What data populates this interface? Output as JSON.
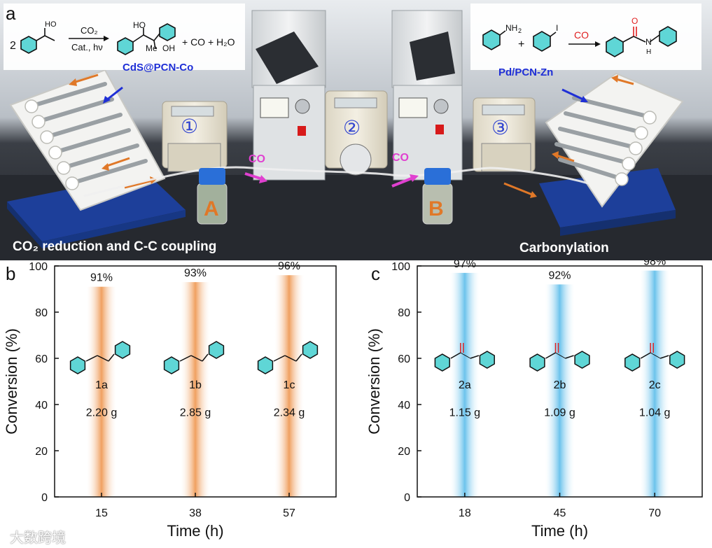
{
  "panel_a": {
    "letter": "a",
    "reaction1": {
      "coefficient": "2",
      "conditions_top": "CO₂",
      "conditions_bottom": "Cat., hν",
      "side_products": "+ CO + H₂O",
      "catalyst_label": "CdS@PCN-Co"
    },
    "reaction2": {
      "plus": "+",
      "reagent_label": "CO",
      "catalyst_label": "Pd/PCN-Zn"
    },
    "pump_numbers": [
      "①",
      "②",
      "③"
    ],
    "co_labels": [
      "CO",
      "CO"
    ],
    "vessel_labels": [
      "A",
      "B"
    ],
    "caption_left": "CO₂ reduction and C-C coupling",
    "caption_right": "Carbonylation",
    "colors": {
      "photo_bg": "#3c4048",
      "catalyst_text": "#1f2fd6",
      "co_red": "#e02020",
      "co_magenta": "#e040d0",
      "arrow_orange": "#e07828"
    }
  },
  "chart_data": [
    {
      "type": "bar",
      "panel_letter": "b",
      "categories": [
        "15",
        "38",
        "57"
      ],
      "values": [
        91,
        93,
        96
      ],
      "value_labels": [
        "91%",
        "93%",
        "96%"
      ],
      "compound_ids": [
        "1a",
        "1b",
        "1c"
      ],
      "masses": [
        "2.20 g",
        "2.85 g",
        "2.34 g"
      ],
      "xlabel": "Time (h)",
      "ylabel": "Conversion (%)",
      "ylim": [
        0,
        100
      ],
      "yticks": [
        "0",
        "20",
        "40",
        "60",
        "80",
        "100"
      ],
      "color": "#f5b07c",
      "grid": false
    },
    {
      "type": "bar",
      "panel_letter": "c",
      "categories": [
        "18",
        "45",
        "70"
      ],
      "values": [
        97,
        92,
        98
      ],
      "value_labels": [
        "97%",
        "92%",
        "98%"
      ],
      "compound_ids": [
        "2a",
        "2b",
        "2c"
      ],
      "masses": [
        "1.15 g",
        "1.09 g",
        "1.04 g"
      ],
      "xlabel": "Time (h)",
      "ylabel": "Conversion (%)",
      "ylim": [
        0,
        100
      ],
      "yticks": [
        "0",
        "20",
        "40",
        "60",
        "80",
        "100"
      ],
      "color": "#8fd2f0",
      "grid": false
    }
  ],
  "watermark": "大数跨境"
}
